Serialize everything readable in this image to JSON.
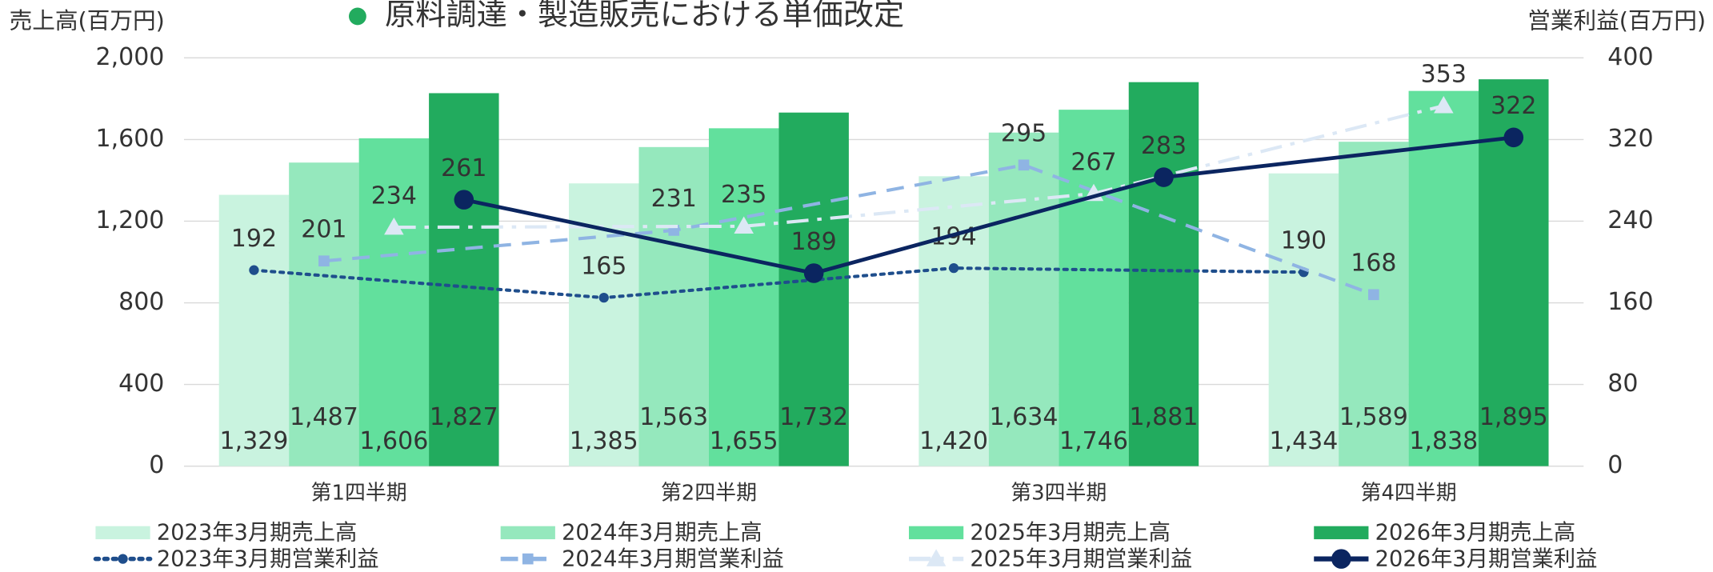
{
  "chart_data": {
    "type": "bar",
    "annotation": "原料調達・製造販売における単価改定",
    "y_axis_label": "売上高(百万円)",
    "y2_axis_label": "営業利益(百万円)",
    "categories": [
      "第1四半期",
      "第2四半期",
      "第3四半期",
      "第4四半期"
    ],
    "ylim": [
      0,
      2000
    ],
    "yticks": [
      0,
      400,
      800,
      {
        "value": 1200,
        "label": "1,200"
      },
      {
        "value": 1600,
        "label": "1,600"
      },
      {
        "value": 2000,
        "label": "2,000"
      }
    ],
    "y2lim": [
      0,
      400
    ],
    "y2ticks": [
      0,
      80,
      160,
      240,
      320,
      400
    ],
    "grid": true,
    "legend": "bottom",
    "series": [
      {
        "name": "2023年3月期売上高",
        "type": "bar",
        "color": "#c9f3df",
        "values": [
          1329,
          1385,
          1420,
          1434
        ],
        "value_labels": [
          "1,329",
          "1,385",
          "1,420",
          "1,434"
        ]
      },
      {
        "name": "2024年3月期売上高",
        "type": "bar",
        "color": "#95e8bd",
        "values": [
          1487,
          1563,
          1634,
          1589
        ],
        "value_labels": [
          "1,487",
          "1,563",
          "1,634",
          "1,589"
        ]
      },
      {
        "name": "2025年3月期売上高",
        "type": "bar",
        "color": "#62e09d",
        "values": [
          1606,
          1655,
          1746,
          1838
        ],
        "value_labels": [
          "1,606",
          "1,655",
          "1,746",
          "1,838"
        ]
      },
      {
        "name": "2026年3月期売上高",
        "type": "bar",
        "color": "#22ab5e",
        "values": [
          1827,
          1732,
          1881,
          1895
        ],
        "value_labels": [
          "1,827",
          "1,732",
          "1,881",
          "1,895"
        ]
      },
      {
        "name": "2023年3月期営業利益",
        "type": "line",
        "axis": "y2",
        "color": "#1f4e8c",
        "values": [
          192,
          165,
          194,
          190
        ]
      },
      {
        "name": "2024年3月期営業利益",
        "type": "line",
        "axis": "y2",
        "color": "#8fb4e3",
        "values": [
          201,
          231,
          295,
          168
        ]
      },
      {
        "name": "2025年3月期営業利益",
        "type": "line",
        "axis": "y2",
        "color": "#dce8f5",
        "values": [
          234,
          235,
          267,
          353
        ]
      },
      {
        "name": "2026年3月期営業利益",
        "type": "line",
        "axis": "y2",
        "color": "#0b2560",
        "values": [
          261,
          189,
          283,
          322
        ]
      }
    ]
  }
}
